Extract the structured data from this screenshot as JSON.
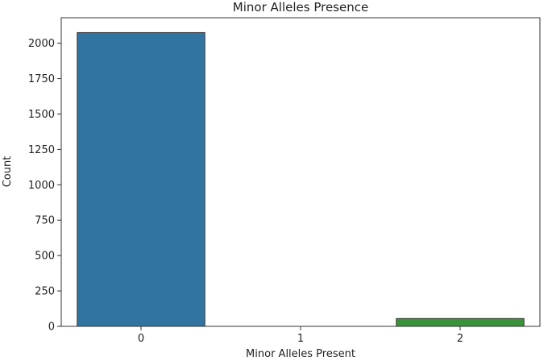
{
  "chart_data": {
    "type": "bar",
    "title": "Minor Alleles Presence",
    "xlabel": "Minor Alleles Present",
    "ylabel": "Count",
    "categories": [
      "0",
      "1",
      "2"
    ],
    "values": [
      2075,
      0,
      55
    ],
    "colors": [
      "#3274a1",
      "#e1812c",
      "#3a923a"
    ],
    "ylim": [
      0,
      2180
    ],
    "yticks": [
      0,
      250,
      500,
      750,
      1000,
      1250,
      1500,
      1750,
      2000
    ],
    "grid": false,
    "legend": "none"
  }
}
